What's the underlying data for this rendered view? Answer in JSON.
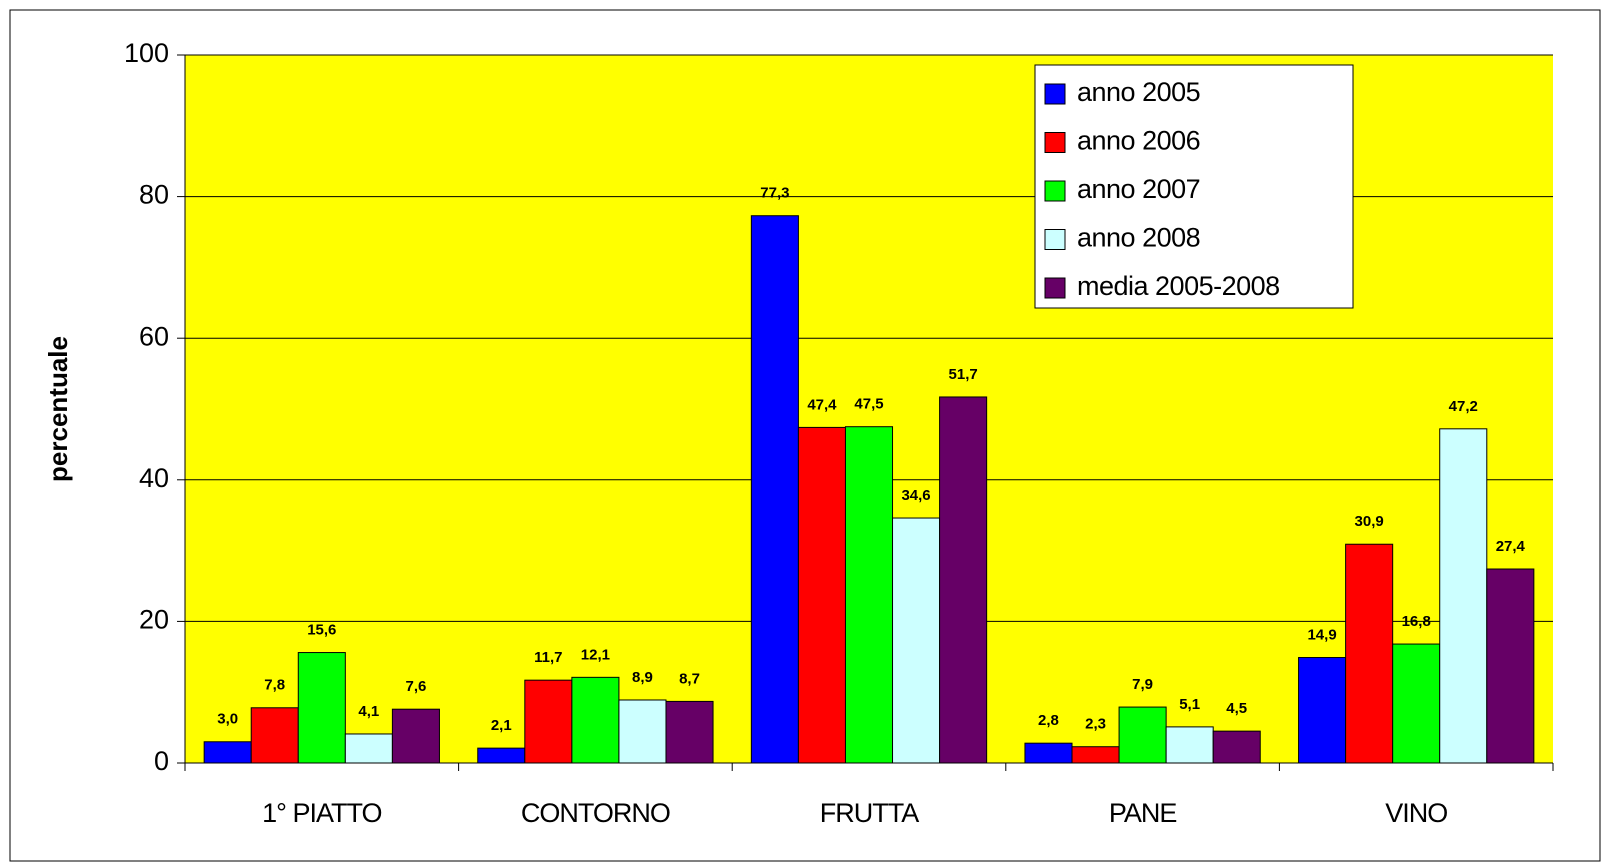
{
  "chart_data": {
    "type": "bar",
    "ylabel": "percentuale",
    "categories": [
      "1° PIATTO",
      "CONTORNO",
      "FRUTTA",
      "PANE",
      "VINO"
    ],
    "series": [
      {
        "name": "anno 2005",
        "color": "#0000ff",
        "values": [
          3.0,
          2.1,
          77.3,
          2.8,
          14.9
        ],
        "value_labels": [
          "3,0",
          "2,1",
          "77,3",
          "2,8",
          "14,9"
        ]
      },
      {
        "name": "anno 2006",
        "color": "#ff0000",
        "values": [
          7.8,
          11.7,
          47.4,
          2.3,
          30.9
        ],
        "value_labels": [
          "7,8",
          "11,7",
          "47,4",
          "2,3",
          "30,9"
        ]
      },
      {
        "name": "anno 2007",
        "color": "#00ff00",
        "values": [
          15.6,
          12.1,
          47.5,
          7.9,
          16.8
        ],
        "value_labels": [
          "15,6",
          "12,1",
          "47,5",
          "7,9",
          "16,8"
        ]
      },
      {
        "name": "anno 2008",
        "color": "#ccffff",
        "values": [
          4.1,
          8.9,
          34.6,
          5.1,
          47.2
        ],
        "value_labels": [
          "4,1",
          "8,9",
          "34,6",
          "5,1",
          "47,2"
        ]
      },
      {
        "name": "media 2005-2008",
        "color": "#660066",
        "values": [
          7.6,
          8.7,
          51.7,
          4.5,
          27.4
        ],
        "value_labels": [
          "7,6",
          "8,7",
          "51,7",
          "4,5",
          "27,4"
        ]
      }
    ],
    "ylim": [
      0,
      100
    ],
    "yticks": [
      0,
      20,
      40,
      60,
      80,
      100
    ],
    "grid": true,
    "plot_background": "#ffff00",
    "legend": "upper right"
  }
}
